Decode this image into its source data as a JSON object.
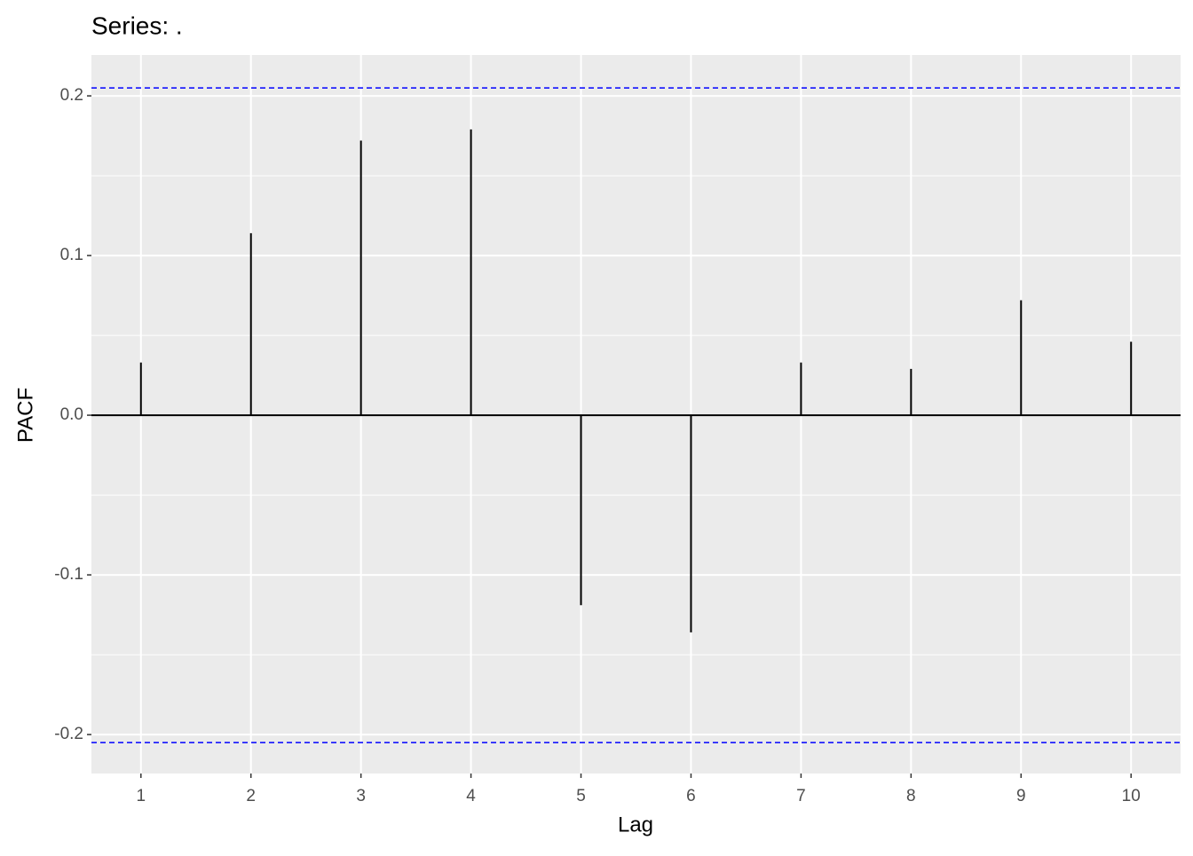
{
  "chart_data": {
    "type": "stem",
    "title": "Series: .",
    "x_label": "Lag",
    "y_label": "PACF",
    "x": [
      1,
      2,
      3,
      4,
      5,
      6,
      7,
      8,
      9,
      10
    ],
    "values": [
      0.033,
      0.114,
      0.172,
      0.179,
      -0.119,
      -0.136,
      0.033,
      0.029,
      0.072,
      0.046
    ],
    "color": "#000000",
    "confidence_bounds": [
      0.205,
      -0.205
    ],
    "confidence_color": "#0000ff",
    "xlim": [
      0.55,
      10.45
    ],
    "xticks": [
      1,
      2,
      3,
      4,
      5,
      6,
      7,
      8,
      9,
      10
    ],
    "ylim": [
      -0.2244,
      0.2256
    ],
    "yticks": [
      -0.2,
      -0.1,
      {
        "value": 0,
        "label": "0.0"
      },
      0.1,
      0.2
    ],
    "grid": true
  }
}
